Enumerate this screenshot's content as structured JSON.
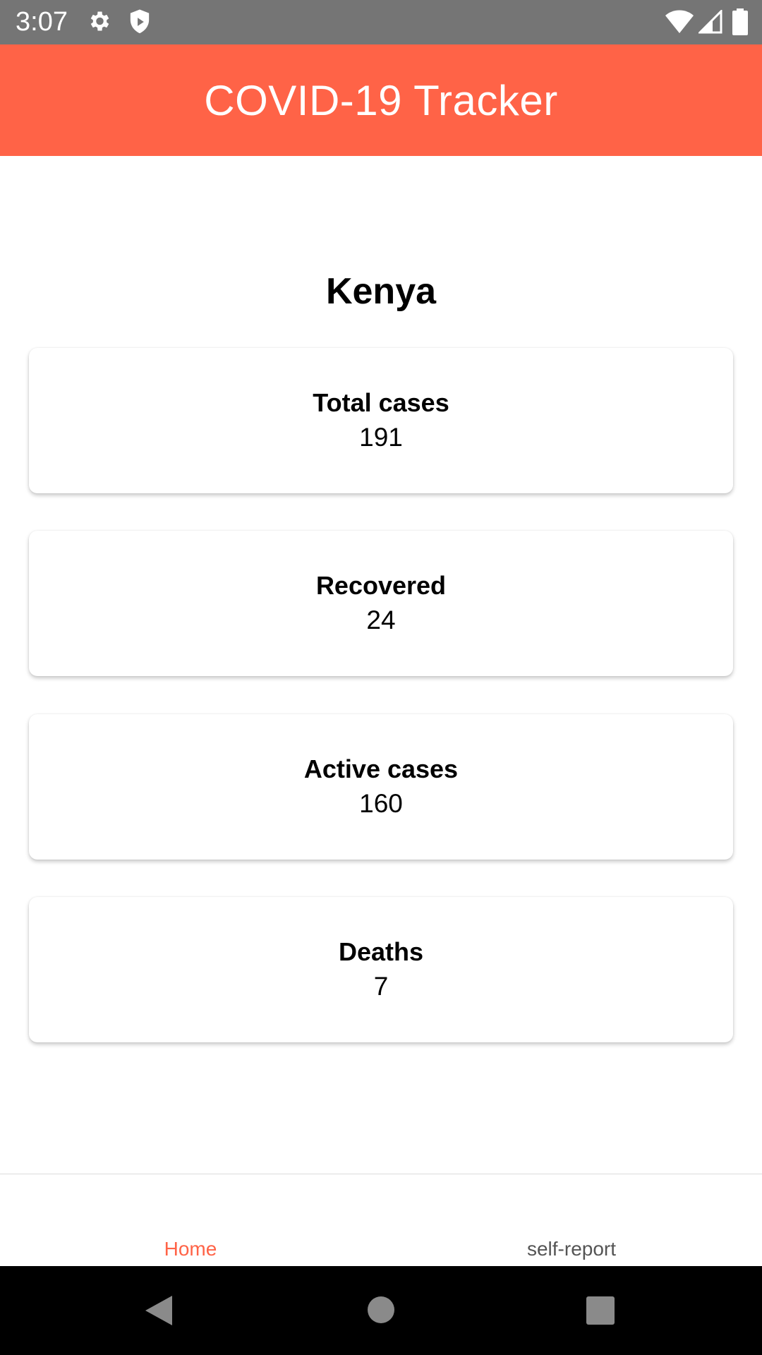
{
  "status_bar": {
    "time": "3:07",
    "icons": [
      "gear-icon",
      "shield-icon",
      "wifi-icon",
      "signal-icon",
      "battery-icon"
    ]
  },
  "app_bar": {
    "title": "COVID-19 Tracker",
    "color": "#FF6347"
  },
  "main": {
    "country": "Kenya",
    "stats": [
      {
        "label": "Total cases",
        "value": "191"
      },
      {
        "label": "Recovered",
        "value": "24"
      },
      {
        "label": "Active cases",
        "value": "160"
      },
      {
        "label": "Deaths",
        "value": "7"
      }
    ]
  },
  "bottom_nav": {
    "items": [
      {
        "label": "Home",
        "active": true,
        "color": "#FF6347"
      },
      {
        "label": "self-report",
        "active": false,
        "color": "#555555"
      }
    ]
  },
  "system_nav": {
    "buttons": [
      "back-icon",
      "home-icon",
      "recents-icon"
    ]
  }
}
